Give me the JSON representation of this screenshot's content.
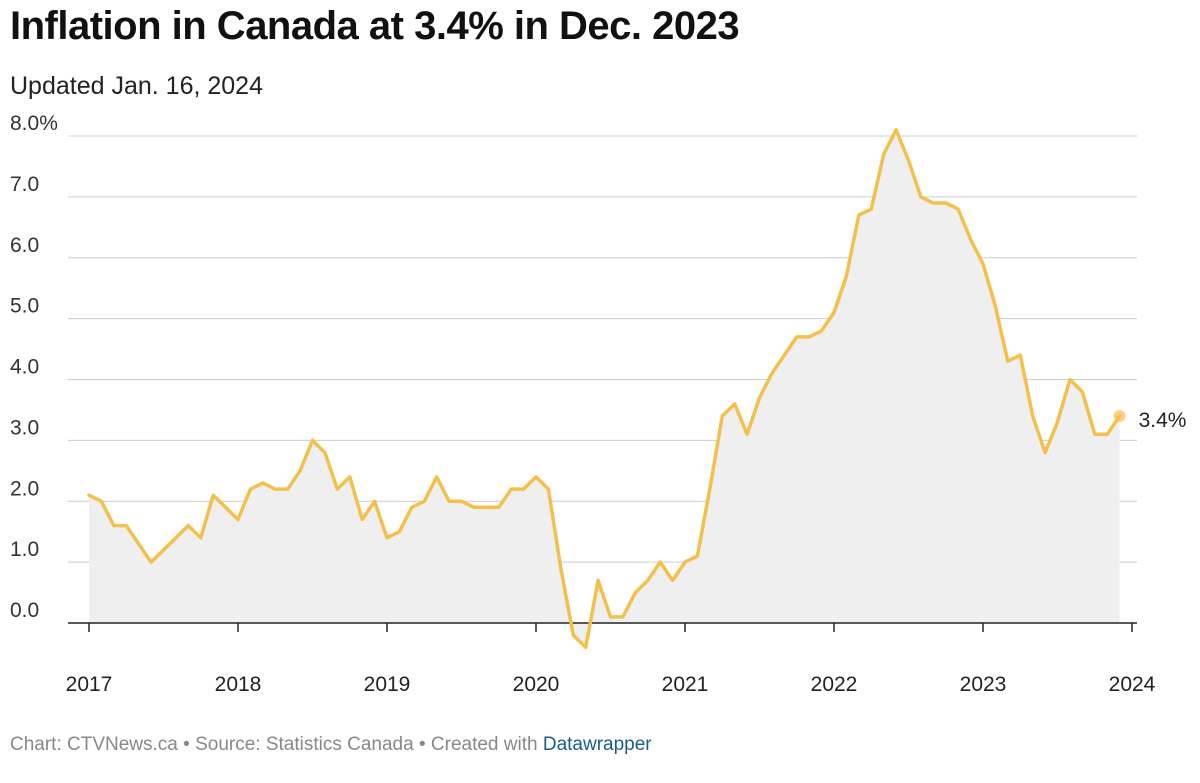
{
  "header": {
    "title": "Inflation in Canada at 3.4% in Dec. 2023",
    "subtitle": "Updated Jan. 16, 2024"
  },
  "footer": {
    "prefix": "Chart: CTVNews.ca • Source: Statistics Canada • Created with ",
    "link": "Datawrapper"
  },
  "colors": {
    "line": "#f3c04b",
    "area": "#efefef",
    "grid": "#cccccc",
    "axis": "#222222"
  },
  "chart_data": {
    "type": "area",
    "title": "Inflation in Canada at 3.4% in Dec. 2023",
    "subtitle": "Updated Jan. 16, 2024",
    "xlabel": "",
    "ylabel": "",
    "x_start": "2017-01",
    "x_range": [
      "2017",
      "2024"
    ],
    "ylim": [
      -0.4,
      8.0
    ],
    "y_ticks": [
      {
        "value": 8,
        "label": "8.0%"
      },
      {
        "value": 7,
        "label": "7.0"
      },
      {
        "value": 6,
        "label": "6.0"
      },
      {
        "value": 5,
        "label": "5.0"
      },
      {
        "value": 4,
        "label": "4.0"
      },
      {
        "value": 3,
        "label": "3.0"
      },
      {
        "value": 2,
        "label": "2.0"
      },
      {
        "value": 1,
        "label": "1.0"
      },
      {
        "value": 0,
        "label": "0.0"
      }
    ],
    "x_ticks": [
      {
        "value": 2017,
        "label": "2017"
      },
      {
        "value": 2018,
        "label": "2018"
      },
      {
        "value": 2019,
        "label": "2019"
      },
      {
        "value": 2020,
        "label": "2020"
      },
      {
        "value": 2021,
        "label": "2021"
      },
      {
        "value": 2022,
        "label": "2022"
      },
      {
        "value": 2023,
        "label": "2023"
      },
      {
        "value": 2024,
        "label": "2024"
      }
    ],
    "grid": true,
    "series": [
      {
        "values": [
          2.1,
          2.0,
          1.6,
          1.6,
          1.3,
          1.0,
          1.2,
          1.4,
          1.6,
          1.4,
          2.1,
          1.9,
          1.7,
          2.2,
          2.3,
          2.2,
          2.2,
          2.5,
          3.0,
          2.8,
          2.2,
          2.4,
          1.7,
          2.0,
          1.4,
          1.5,
          1.9,
          2.0,
          2.4,
          2.0,
          2.0,
          1.9,
          1.9,
          1.9,
          2.2,
          2.2,
          2.4,
          2.2,
          0.9,
          -0.2,
          -0.4,
          0.7,
          0.1,
          0.1,
          0.5,
          0.7,
          1.0,
          0.7,
          1.0,
          1.1,
          2.2,
          3.4,
          3.6,
          3.1,
          3.7,
          4.1,
          4.4,
          4.7,
          4.7,
          4.8,
          5.1,
          5.7,
          6.7,
          6.8,
          7.7,
          8.1,
          7.6,
          7.0,
          6.9,
          6.9,
          6.8,
          6.3,
          5.9,
          5.2,
          4.3,
          4.4,
          3.4,
          2.8,
          3.3,
          4.0,
          3.8,
          3.1,
          3.1,
          3.4
        ]
      }
    ],
    "end_label": "3.4%"
  }
}
